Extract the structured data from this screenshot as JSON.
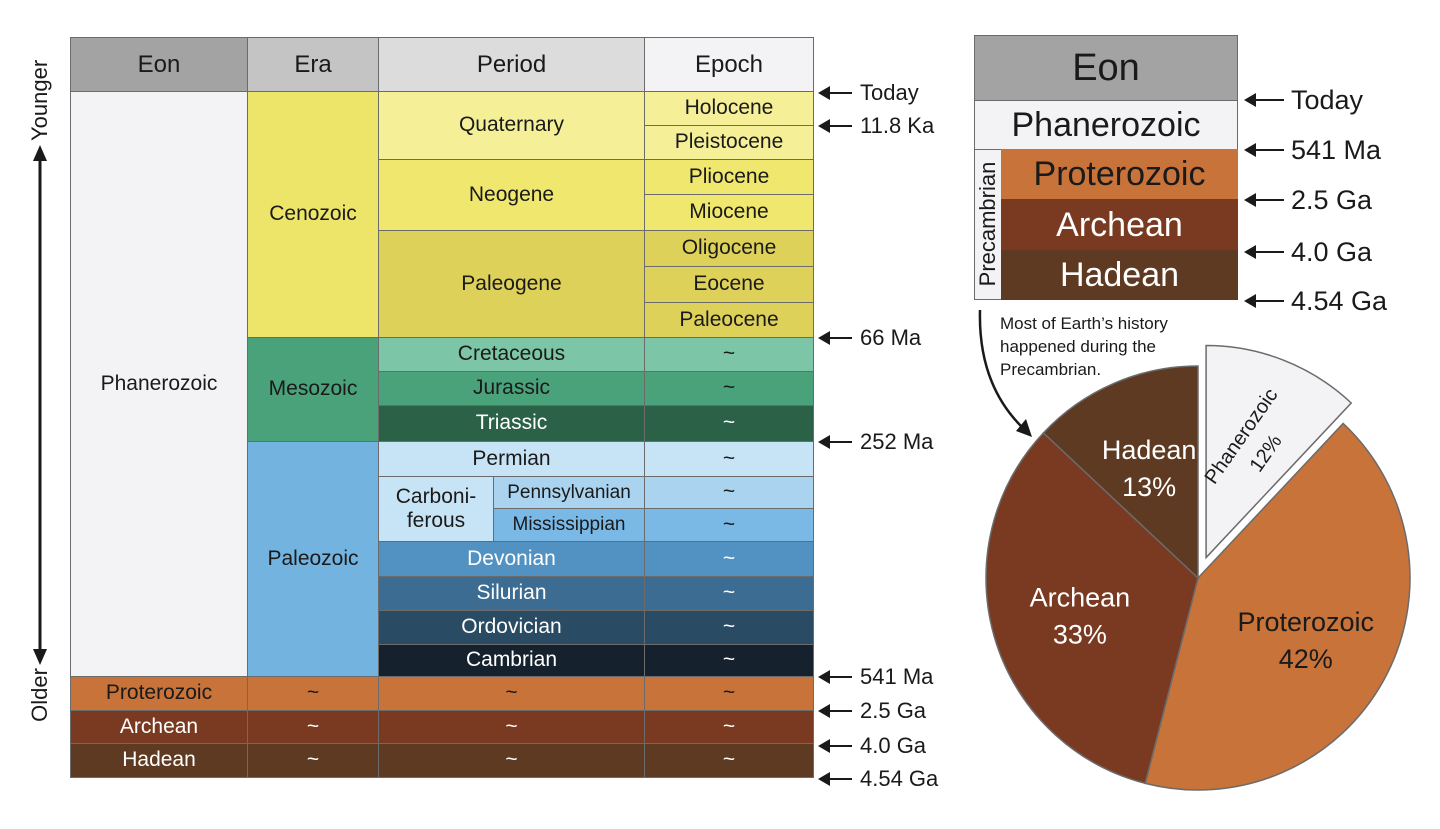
{
  "table": {
    "headers": {
      "eon": "Eon",
      "era": "Era",
      "period": "Period",
      "epoch": "Epoch"
    },
    "eons": {
      "phanerozoic": "Phanerozoic",
      "proterozoic": "Proterozoic",
      "archean": "Archean",
      "hadean": "Hadean"
    },
    "eras": {
      "cenozoic": "Cenozoic",
      "mesozoic": "Mesozoic",
      "paleozoic": "Paleozoic"
    },
    "periods": {
      "quaternary": "Quaternary",
      "neogene": "Neogene",
      "paleogene": "Paleogene",
      "cretaceous": "Cretaceous",
      "jurassic": "Jurassic",
      "triassic": "Triassic",
      "permian": "Permian",
      "carboniferous_1": "Carboni-",
      "carboniferous_2": "ferous",
      "pennsylvanian": "Pennsylvanian",
      "mississippian": "Mississippian",
      "devonian": "Devonian",
      "silurian": "Silurian",
      "ordovician": "Ordovician",
      "cambrian": "Cambrian"
    },
    "epochs": {
      "holocene": "Holocene",
      "pleistocene": "Pleistocene",
      "pliocene": "Pliocene",
      "miocene": "Miocene",
      "oligocene": "Oligocene",
      "eocene": "Eocene",
      "paleocene": "Paleocene"
    },
    "none": "~",
    "time_marks": [
      "Today",
      "11.8 Ka",
      "66 Ma",
      "252 Ma",
      "541 Ma",
      "2.5 Ga",
      "4.0 Ga",
      "4.54 Ga"
    ],
    "axis": {
      "younger": "Younger",
      "older": "Older"
    }
  },
  "summary": {
    "header": "Eon",
    "eons": [
      "Phanerozoic",
      "Proterozoic",
      "Archean",
      "Hadean"
    ],
    "group_label": "Precambrian",
    "time_marks": [
      "Today",
      "541 Ma",
      "2.5 Ga",
      "4.0 Ga",
      "4.54 Ga"
    ],
    "annotation": [
      "Most of Earth’s history",
      "happened during the",
      "Precambrian."
    ]
  },
  "chart_data": {
    "type": "pie",
    "categories": [
      "Phanerozoic",
      "Proterozoic",
      "Archean",
      "Hadean"
    ],
    "values": [
      12,
      42,
      33,
      13
    ],
    "labels": [
      "12%",
      "42%",
      "33%",
      "13%"
    ],
    "exploded": [
      "Phanerozoic"
    ],
    "colors": [
      "#f3f3f5",
      "#c8733a",
      "#7a3a22",
      "#5e3a22"
    ]
  },
  "colors": {
    "header_dark": "#a3a3a3",
    "header_mid": "#c4c4c4",
    "header_light": "#dcdcdc",
    "header_lightest": "#f3f3f5",
    "phanerozoic": "#f3f3f5",
    "cenozoic": "#ece56a",
    "quaternary": "#f5f098",
    "neogene": "#f0e76e",
    "paleogene": "#ddd15a",
    "mesozoic": "#4aa27a",
    "cretaceous": "#7cc5a6",
    "jurassic": "#4aa27a",
    "triassic": "#2a6147",
    "paleozoic": "#72b3e0",
    "permian": "#c7e4f6",
    "pennsylvanian": "#a9d3ef",
    "mississippian": "#7ab8e6",
    "devonian": "#5292c2",
    "silurian": "#3d6c92",
    "ordovician": "#2a4b64",
    "cambrian": "#15222d",
    "proterozoic": "#c8733a",
    "archean": "#7a3a22",
    "hadean": "#5e3a22"
  }
}
